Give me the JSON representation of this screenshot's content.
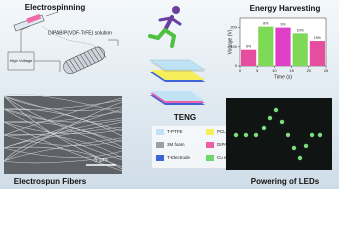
{
  "electrospinning": {
    "title": "Electrospinning",
    "solution_label": "DIPAB/P(VDF-TrFE) solution",
    "voltage_label": "High Voltage"
  },
  "energy_chart": {
    "type": "bar",
    "title": "Energy Harvesting",
    "x_label": "Time (s)",
    "y_label": "Voltage (V)",
    "bins": [
      0,
      5,
      10,
      15,
      20,
      25
    ],
    "values": [
      85,
      205,
      200,
      170,
      130
    ],
    "bar_labels": [
      "6%",
      "8%",
      "9%",
      "10%",
      "15%"
    ],
    "colors": [
      "#e64d9e",
      "#7ed957",
      "#e040c8",
      "#7ed957",
      "#e64d9e"
    ],
    "xlim": [
      0,
      25
    ],
    "xticks": [
      0,
      5,
      10,
      15,
      20,
      25
    ],
    "ylim": [
      0,
      250
    ],
    "yticks": [
      0,
      100,
      200
    ]
  },
  "teng": {
    "title": "TENG",
    "legend": [
      {
        "label": "T-PTFE",
        "color": "#bfe3f5"
      },
      {
        "label": "PCL",
        "color": "#f6ee5a"
      },
      {
        "label": "3M foam",
        "color": "#9aa0a6"
      },
      {
        "label": "DIPAB/P(VDF-TrFE)",
        "color": "#ef5fa7"
      },
      {
        "label": "T-Electrode",
        "color": "#3f63d8"
      },
      {
        "label": "Cu electrode",
        "color": "#6fd86a"
      }
    ]
  },
  "fibers": {
    "title": "Electrospun Fibers",
    "scale_label": "5 μm"
  },
  "leds": {
    "title": "Powering of LEDs"
  }
}
